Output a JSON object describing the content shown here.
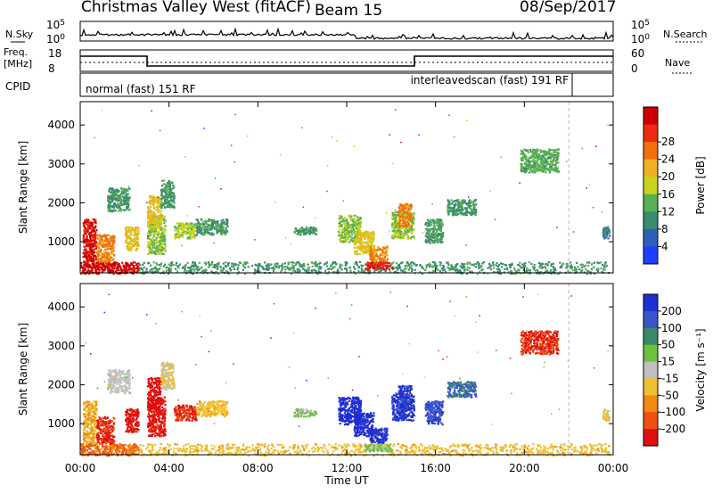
{
  "header": {
    "title": "Christmas Valley West (fitACF)",
    "beam": "Beam 15",
    "date": "08/Sep/2017"
  },
  "panels": {
    "nsky": {
      "label": "N.Sky",
      "ticks": [
        "10^5",
        "10^0"
      ]
    },
    "nsearch": {
      "label": "N.Search",
      "ticks": [
        "10^5",
        "10^0"
      ]
    },
    "freq": {
      "label_line1": "Freq.",
      "label_line2": "[MHz]",
      "ticks": [
        "18",
        "8"
      ]
    },
    "nave": {
      "label": "Nave",
      "ticks": [
        "60",
        "0"
      ]
    },
    "cpid": {
      "label": "CPID",
      "segments": [
        {
          "text": "normal (fast) 151 RF",
          "start_hour": 0.0,
          "end_hour": 22.0
        },
        {
          "text": "interleavedscan (fast) 191 RF",
          "start_hour": 22.0,
          "end_hour": 24.0
        }
      ]
    }
  },
  "colors": {
    "power": [
      "#1f3fff",
      "#2f5fb8",
      "#3a8c6e",
      "#5ab050",
      "#c9d21c",
      "#f0b020",
      "#f07010",
      "#ee2a10",
      "#cc0000"
    ],
    "velocity": [
      "#1f2fd0",
      "#3a55c8",
      "#3a8a6a",
      "#6ec040",
      "#c0c0c0",
      "#f0c030",
      "#f08a10",
      "#f05010",
      "#e01010"
    ]
  },
  "chart_data": [
    {
      "type": "heatmap",
      "name": "power",
      "ylabel": "Slant Range [km]",
      "y_ticks": [
        1000,
        2000,
        3000,
        4000
      ],
      "ylim": [
        200,
        4600
      ],
      "xlim": [
        0,
        24
      ],
      "x_ticks": [
        "00:00",
        "04:00",
        "08:00",
        "12:00",
        "16:00",
        "20:00",
        "00:00"
      ],
      "colorbar": {
        "label": "Power [dB]",
        "ticks": [
          "4",
          "8",
          "12",
          "16",
          "20",
          "24",
          "28"
        ],
        "range": [
          0,
          32
        ]
      },
      "blobs": [
        {
          "t0": 0.0,
          "t1": 2.6,
          "r0": 200,
          "r1": 500,
          "v": 30
        },
        {
          "t0": 2.6,
          "t1": 23.8,
          "r0": 200,
          "r1": 500,
          "v": 10
        },
        {
          "t0": 0.1,
          "t1": 0.7,
          "r0": 500,
          "r1": 1600,
          "v": 29
        },
        {
          "t0": 0.7,
          "t1": 1.5,
          "r0": 500,
          "r1": 1200,
          "v": 22
        },
        {
          "t0": 1.2,
          "t1": 2.2,
          "r0": 1800,
          "r1": 2400,
          "v": 10
        },
        {
          "t0": 2.0,
          "t1": 2.6,
          "r0": 800,
          "r1": 1400,
          "v": 18
        },
        {
          "t0": 3.0,
          "t1": 3.8,
          "r0": 700,
          "r1": 1700,
          "v": 14
        },
        {
          "t0": 3.0,
          "t1": 3.6,
          "r0": 1400,
          "r1": 2200,
          "v": 18
        },
        {
          "t0": 3.6,
          "t1": 4.2,
          "r0": 1900,
          "r1": 2600,
          "v": 10
        },
        {
          "t0": 4.2,
          "t1": 5.2,
          "r0": 1100,
          "r1": 1500,
          "v": 15
        },
        {
          "t0": 5.2,
          "t1": 6.6,
          "r0": 1200,
          "r1": 1600,
          "v": 10
        },
        {
          "t0": 9.6,
          "t1": 10.6,
          "r0": 1200,
          "r1": 1400,
          "v": 10
        },
        {
          "t0": 11.6,
          "t1": 12.6,
          "r0": 1000,
          "r1": 1700,
          "v": 14
        },
        {
          "t0": 12.3,
          "t1": 13.2,
          "r0": 700,
          "r1": 1300,
          "v": 18
        },
        {
          "t0": 13.0,
          "t1": 13.8,
          "r0": 500,
          "r1": 900,
          "v": 22
        },
        {
          "t0": 12.8,
          "t1": 14.0,
          "r0": 300,
          "r1": 500,
          "v": 28
        },
        {
          "t0": 14.0,
          "t1": 15.0,
          "r0": 1100,
          "r1": 1800,
          "v": 14
        },
        {
          "t0": 14.3,
          "t1": 14.9,
          "r0": 1400,
          "r1": 2000,
          "v": 22
        },
        {
          "t0": 15.5,
          "t1": 16.3,
          "r0": 1000,
          "r1": 1600,
          "v": 10
        },
        {
          "t0": 16.5,
          "t1": 17.8,
          "r0": 1700,
          "r1": 2100,
          "v": 10
        },
        {
          "t0": 19.8,
          "t1": 21.5,
          "r0": 2800,
          "r1": 3400,
          "v": 12
        },
        {
          "t0": 23.5,
          "t1": 23.8,
          "r0": 1100,
          "r1": 1400,
          "v": 8
        }
      ]
    },
    {
      "type": "heatmap",
      "name": "velocity",
      "ylabel": "Slant Range [km]",
      "y_ticks": [
        1000,
        2000,
        3000,
        4000
      ],
      "ylim": [
        200,
        4600
      ],
      "xlim": [
        0,
        24
      ],
      "x_ticks": [
        "00:00",
        "04:00",
        "08:00",
        "12:00",
        "16:00",
        "20:00",
        "00:00"
      ],
      "xlabel": "Time UT",
      "colorbar": {
        "label": "Velocity [m s⁻¹]",
        "ticks": [
          "200",
          "100",
          "50",
          "15",
          "-15",
          "-50",
          "-100",
          "-200"
        ],
        "range": [
          -250,
          250
        ]
      },
      "blobs": [
        {
          "t0": 0.0,
          "t1": 2.6,
          "r0": 200,
          "r1": 500,
          "v": -140
        },
        {
          "t0": 2.6,
          "t1": 23.8,
          "r0": 200,
          "r1": 500,
          "v": -60
        },
        {
          "t0": 0.1,
          "t1": 0.7,
          "r0": 500,
          "r1": 1600,
          "v": -80
        },
        {
          "t0": 0.7,
          "t1": 1.5,
          "r0": 500,
          "r1": 1200,
          "v": -200
        },
        {
          "t0": 1.2,
          "t1": 2.2,
          "r0": 1800,
          "r1": 2400,
          "v": 0
        },
        {
          "t0": 2.0,
          "t1": 2.6,
          "r0": 800,
          "r1": 1400,
          "v": -220
        },
        {
          "t0": 3.0,
          "t1": 3.8,
          "r0": 700,
          "r1": 1700,
          "v": -220
        },
        {
          "t0": 3.0,
          "t1": 3.6,
          "r0": 1400,
          "r1": 2200,
          "v": -230
        },
        {
          "t0": 3.6,
          "t1": 4.2,
          "r0": 1900,
          "r1": 2600,
          "v": -30
        },
        {
          "t0": 4.2,
          "t1": 5.2,
          "r0": 1100,
          "r1": 1500,
          "v": -200
        },
        {
          "t0": 5.2,
          "t1": 6.6,
          "r0": 1200,
          "r1": 1600,
          "v": -60
        },
        {
          "t0": 9.6,
          "t1": 10.6,
          "r0": 1200,
          "r1": 1400,
          "v": 40
        },
        {
          "t0": 11.6,
          "t1": 12.6,
          "r0": 1000,
          "r1": 1700,
          "v": 230
        },
        {
          "t0": 12.3,
          "t1": 13.2,
          "r0": 700,
          "r1": 1300,
          "v": 230
        },
        {
          "t0": 13.0,
          "t1": 13.8,
          "r0": 500,
          "r1": 900,
          "v": 220
        },
        {
          "t0": 12.8,
          "t1": 14.0,
          "r0": 300,
          "r1": 500,
          "v": 40
        },
        {
          "t0": 14.0,
          "t1": 15.0,
          "r0": 1100,
          "r1": 1800,
          "v": 210
        },
        {
          "t0": 14.3,
          "t1": 14.9,
          "r0": 1400,
          "r1": 2000,
          "v": 200
        },
        {
          "t0": 15.5,
          "t1": 16.3,
          "r0": 1000,
          "r1": 1600,
          "v": 180
        },
        {
          "t0": 16.5,
          "t1": 17.8,
          "r0": 1700,
          "r1": 2100,
          "v": 150
        },
        {
          "t0": 19.8,
          "t1": 21.5,
          "r0": 2800,
          "r1": 3400,
          "v": -200
        },
        {
          "t0": 23.5,
          "t1": 23.8,
          "r0": 1100,
          "r1": 1400,
          "v": -40
        }
      ]
    }
  ]
}
